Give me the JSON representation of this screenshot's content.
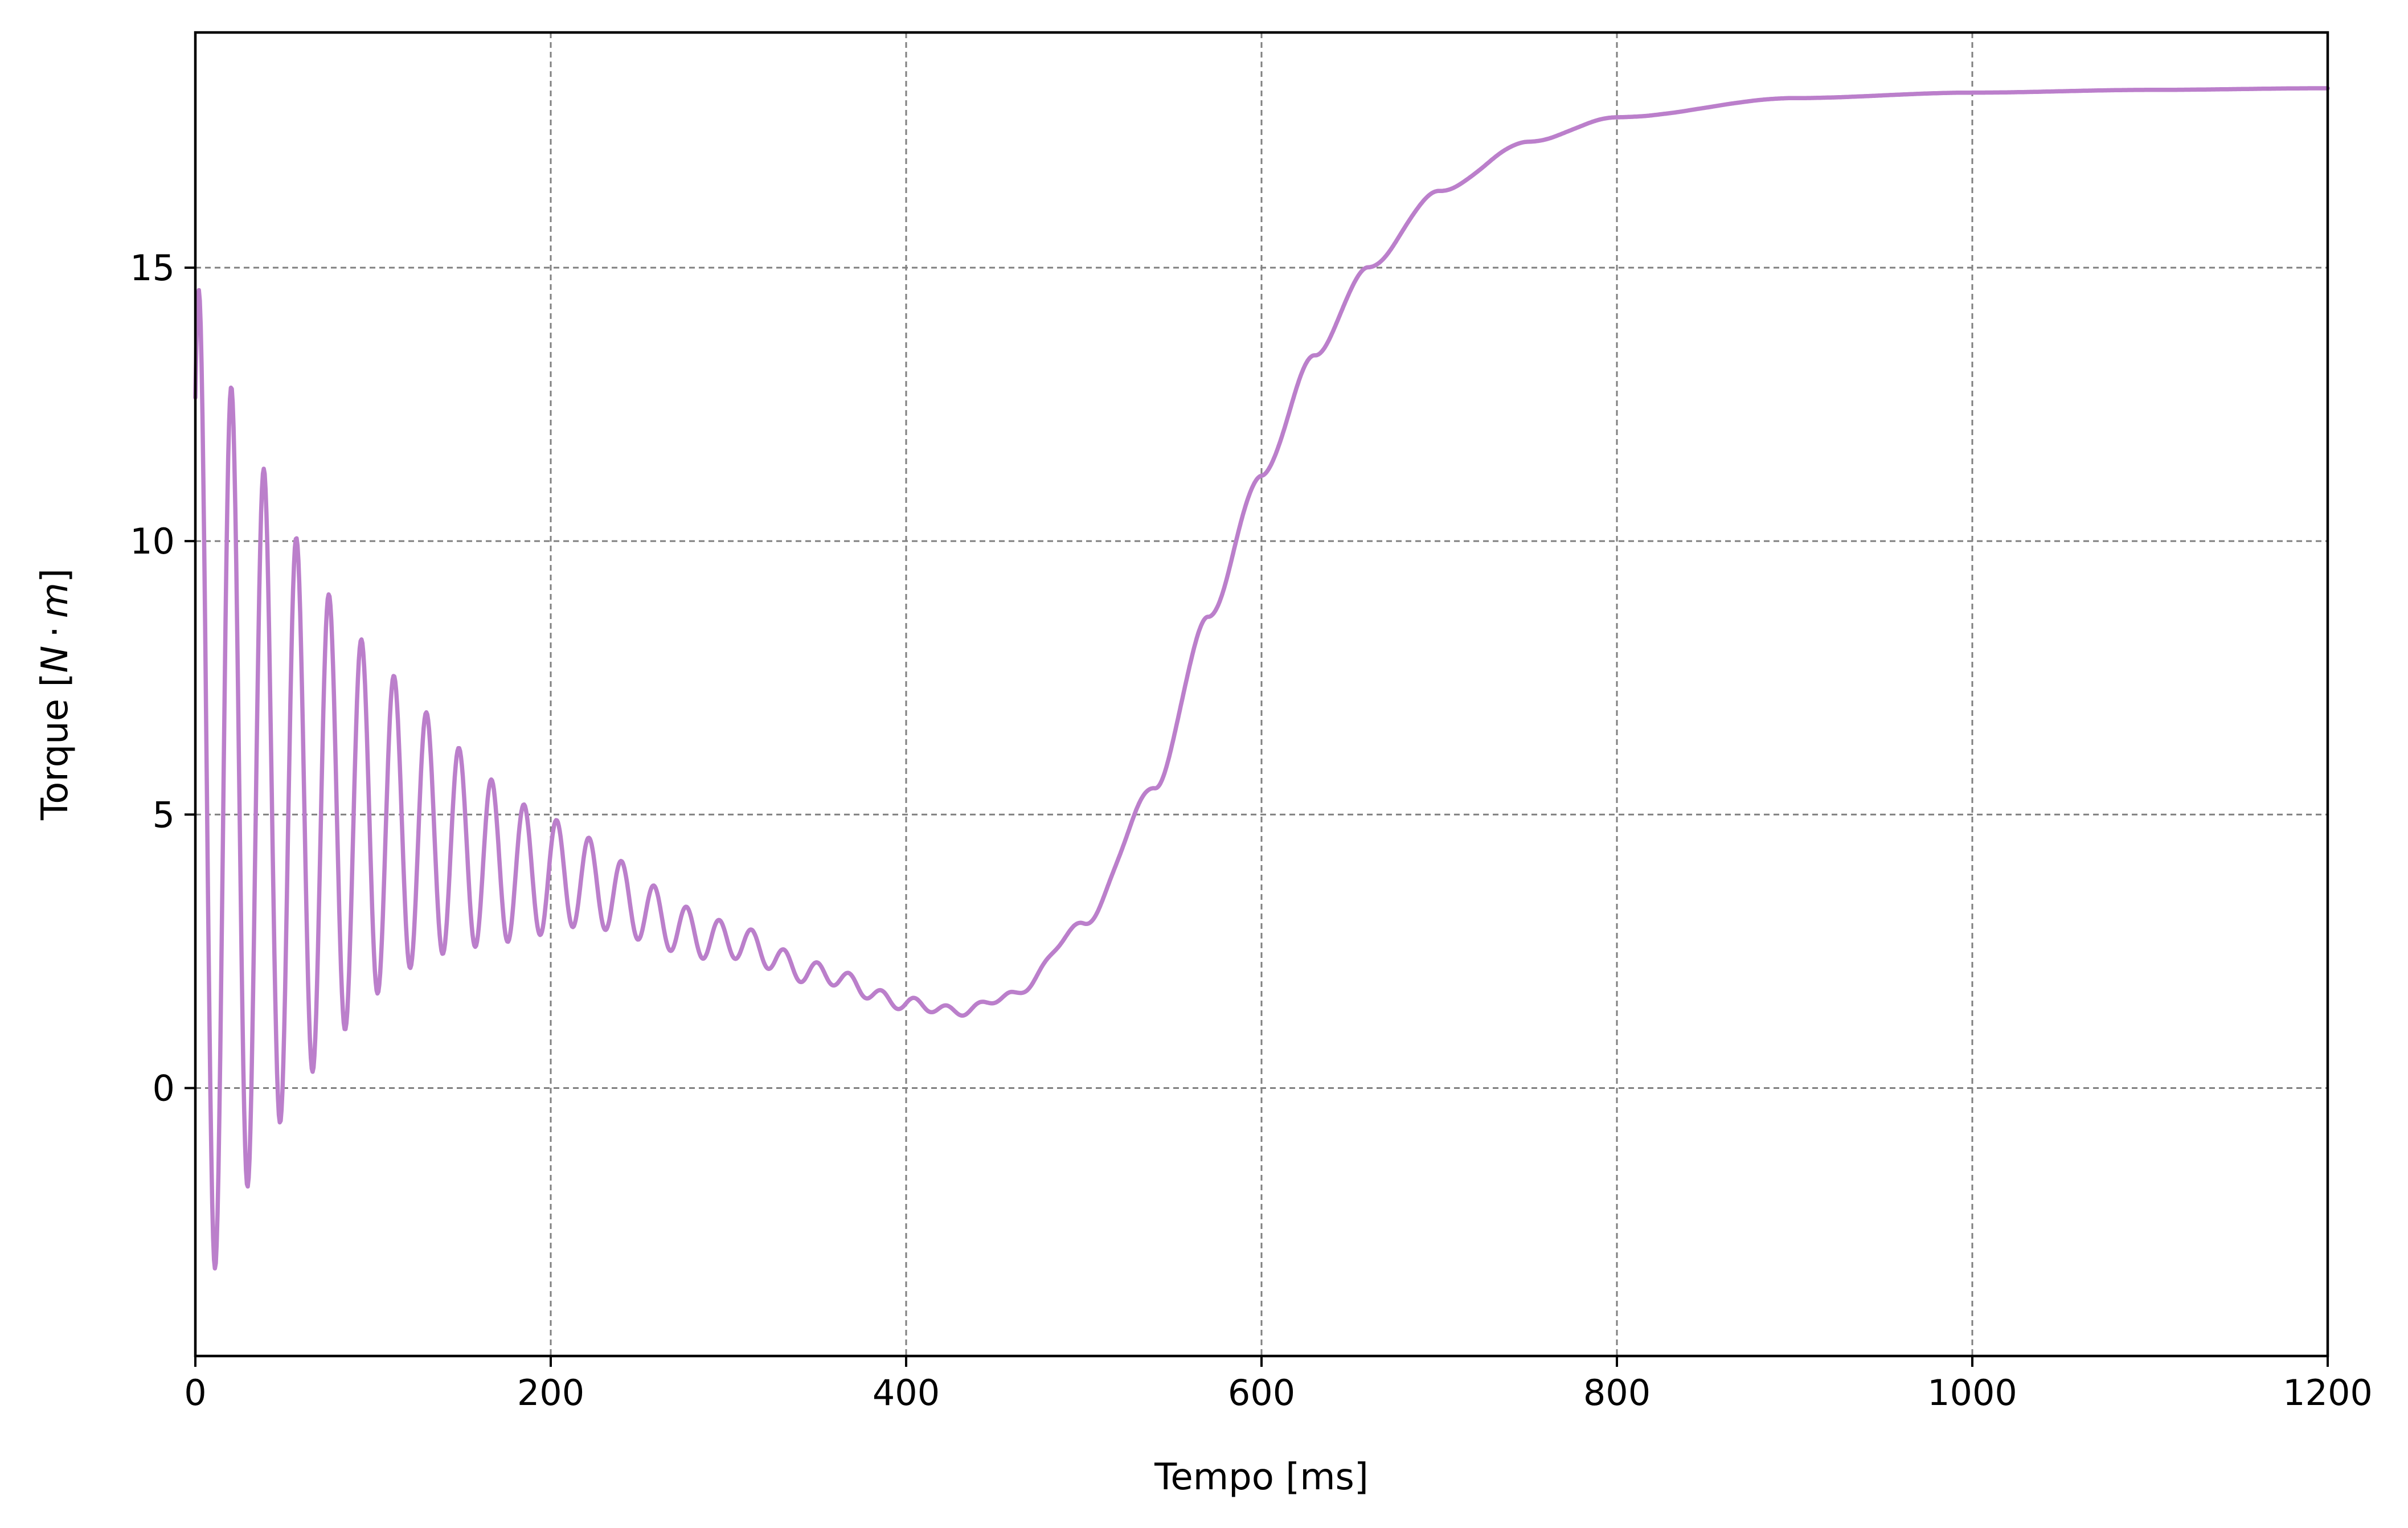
{
  "chart_data": {
    "type": "line",
    "title": "",
    "xlabel": "Tempo [ms]",
    "ylabel_prefix": "Torque [",
    "ylabel_N": "N",
    "ylabel_dot": "·",
    "ylabel_m": "m",
    "ylabel_suffix": "]",
    "xlim": [
      0,
      1200
    ],
    "ylim": [
      -4.9,
      19.3
    ],
    "xticks": [
      0,
      200,
      400,
      600,
      800,
      1000,
      1200
    ],
    "yticks": [
      0,
      5,
      10,
      15
    ],
    "grid": true,
    "line_color": "#bb7fcb",
    "series": [
      {
        "name": "",
        "model": {
          "osc_amplitude": 9.6,
          "osc_decay_ms": 90,
          "osc_period_ms": 18.3,
          "osc_phase_offset_ms": 2,
          "base_points": [
            [
              0,
              5.2
            ],
            [
              100,
              4.8
            ],
            [
              200,
              3.9
            ],
            [
              300,
              2.7
            ],
            [
              350,
              2.1
            ],
            [
              400,
              1.55
            ],
            [
              430,
              1.4
            ],
            [
              460,
              1.7
            ],
            [
              500,
              3.0
            ],
            [
              540,
              5.5
            ],
            [
              570,
              8.6
            ],
            [
              600,
              11.2
            ],
            [
              630,
              13.4
            ],
            [
              660,
              15.0
            ],
            [
              700,
              16.4
            ],
            [
              750,
              17.3
            ],
            [
              800,
              17.75
            ],
            [
              900,
              18.1
            ],
            [
              1000,
              18.2
            ],
            [
              1100,
              18.25
            ],
            [
              1200,
              18.28
            ]
          ]
        },
        "key_points": [
          [
            0,
            10.0
          ],
          [
            11,
            -3.8
          ],
          [
            20,
            13.9
          ],
          [
            28,
            -2.7
          ],
          [
            37,
            13.0
          ],
          [
            46,
            -1.7
          ],
          [
            55,
            11.9
          ],
          [
            63,
            -0.8
          ],
          [
            72,
            10.8
          ],
          [
            81,
            0.0
          ],
          [
            90,
            9.7
          ],
          [
            99,
            0.8
          ],
          [
            108,
            8.6
          ],
          [
            117,
            1.5
          ],
          [
            126,
            7.6
          ],
          [
            136,
            2.0
          ],
          [
            146,
            6.6
          ],
          [
            155,
            2.5
          ],
          [
            165,
            5.7
          ],
          [
            174,
            2.9
          ],
          [
            184,
            5.0
          ],
          [
            194,
            3.2
          ],
          [
            204,
            4.3
          ],
          [
            225,
            3.8
          ],
          [
            250,
            3.4
          ],
          [
            270,
            3.1
          ],
          [
            300,
            2.7
          ],
          [
            400,
            1.45
          ],
          [
            430,
            1.35
          ],
          [
            500,
            3.0
          ],
          [
            600,
            11.0
          ],
          [
            660,
            15.0
          ],
          [
            800,
            17.7
          ],
          [
            1000,
            18.2
          ],
          [
            1200,
            18.3
          ]
        ]
      }
    ]
  }
}
